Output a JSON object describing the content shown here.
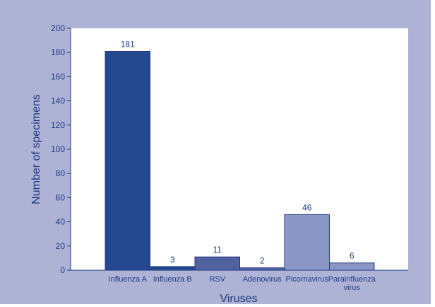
{
  "chart_data": {
    "type": "bar",
    "categories": [
      "Influenza A",
      "Influenza B",
      "RSV",
      "Adenovirus",
      "Picornavirus",
      "Parainfluenza virus"
    ],
    "category_lines": [
      [
        "Influenza A"
      ],
      [
        "Influenza B"
      ],
      [
        "RSV"
      ],
      [
        "Adenovirus"
      ],
      [
        "Picornavirus"
      ],
      [
        "Parainfluenza",
        "virus"
      ]
    ],
    "values": [
      181,
      3,
      11,
      2,
      46,
      6
    ],
    "data_labels": [
      "181",
      "3",
      "11",
      "2",
      "46",
      "6"
    ],
    "bar_colors": [
      "#25478d",
      "#25478d",
      "#52629f",
      "#52629f",
      "#8b97c6",
      "#8b97c6"
    ],
    "xlabel": "Viruses",
    "ylabel": "Number of specimens",
    "ylim": [
      0,
      200
    ],
    "yticks": [
      0,
      20,
      40,
      60,
      80,
      100,
      120,
      140,
      160,
      180,
      200
    ],
    "ytick_labels": [
      "0",
      "20",
      "40",
      "60",
      "80",
      "100",
      "120",
      "140",
      "160",
      "180",
      "200"
    ],
    "grid": false,
    "legend": "none"
  },
  "colors": {
    "frame_background": "#aeb2d4",
    "plot_background": "#ffffff",
    "axis": "#1f3a86",
    "text": "#1f3a86",
    "bar_outline": "#1f3a86"
  }
}
